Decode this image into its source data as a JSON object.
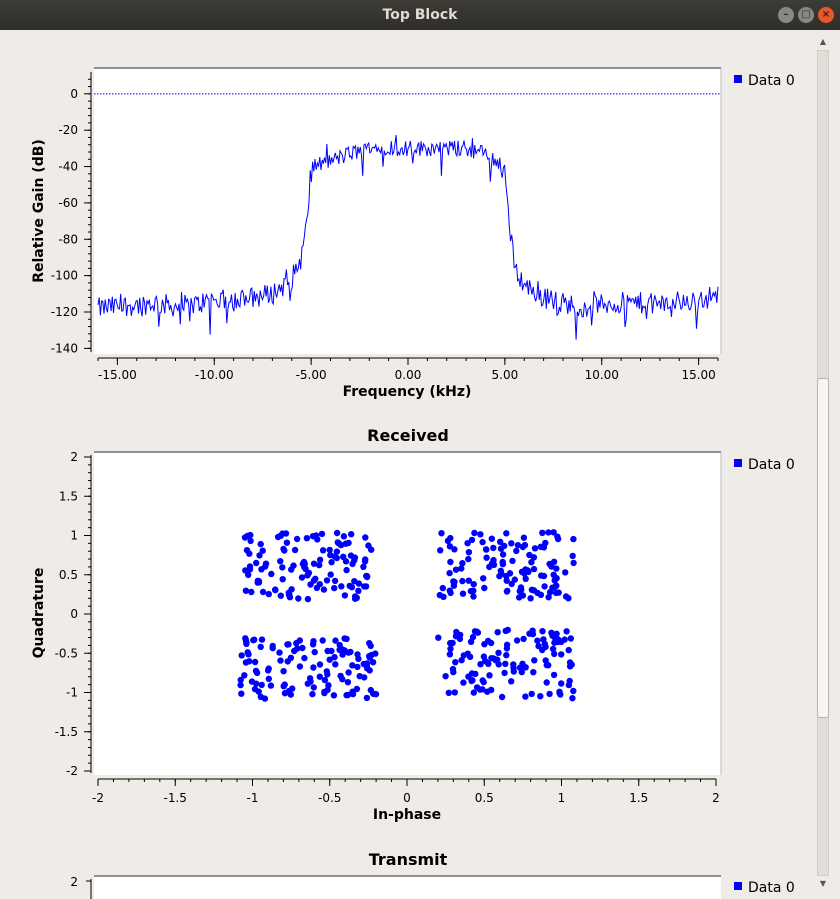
{
  "window": {
    "title": "Top Block",
    "controls": [
      "minimize-icon",
      "maximize-icon",
      "close-icon"
    ]
  },
  "colors": {
    "series": "#0000ff",
    "reference_line": "#0000ff",
    "plot_bg": "#ffffff",
    "window_bg": "#efebe7"
  },
  "chart_data": [
    {
      "type": "line",
      "title": "",
      "xlabel": "Frequency (kHz)",
      "ylabel": "Relative Gain (dB)",
      "xlim": [
        -16,
        16
      ],
      "ylim": [
        -142,
        12
      ],
      "xticks": [
        -15,
        -10,
        -5,
        0,
        5,
        10,
        15
      ],
      "xtick_labels": [
        "-15.00",
        "-10.00",
        "-5.00",
        "0.00",
        "5.00",
        "10.00",
        "15.00"
      ],
      "yticks": [
        0,
        -20,
        -40,
        -60,
        -80,
        -100,
        -120,
        -140
      ],
      "ytick_labels": [
        "0",
        "-20",
        "-40",
        "-60",
        "-80",
        "-100",
        "-120",
        "-140"
      ],
      "reference_line_y": 0,
      "legend": {
        "position": "top-right",
        "entries": [
          "Data 0"
        ]
      },
      "series": [
        {
          "name": "Data 0",
          "x": [
            -16,
            -15,
            -14,
            -13,
            -12,
            -11,
            -10,
            -9,
            -8,
            -7,
            -6,
            -5.5,
            -5.2,
            -5,
            -4,
            -3,
            -2,
            -1,
            0,
            1,
            2,
            3,
            4,
            5,
            5.2,
            5.5,
            6,
            7,
            8,
            9,
            10,
            11,
            12,
            13,
            14,
            15,
            16
          ],
          "y": [
            -118,
            -117,
            -116,
            -115,
            -117,
            -116,
            -113,
            -114,
            -112,
            -110,
            -102,
            -90,
            -70,
            -40,
            -37,
            -33,
            -30,
            -29,
            -30,
            -30,
            -30,
            -30,
            -33,
            -40,
            -70,
            -95,
            -105,
            -112,
            -115,
            -117,
            -116,
            -115,
            -115,
            -116,
            -114,
            -114,
            -110
          ]
        }
      ]
    },
    {
      "type": "scatter",
      "title": "Received",
      "xlabel": "In-phase",
      "ylabel": "Quadrature",
      "xlim": [
        -2,
        2
      ],
      "ylim": [
        -2,
        2
      ],
      "xticks": [
        -2,
        -1.5,
        -1,
        -0.5,
        0,
        0.5,
        1,
        1.5,
        2
      ],
      "xtick_labels": [
        "-2",
        "-1.5",
        "-1",
        "-0.5",
        "0",
        "0.5",
        "1",
        "1.5",
        "2"
      ],
      "yticks": [
        2,
        1.5,
        1,
        0.5,
        0,
        -0.5,
        -1,
        -1.5,
        -2
      ],
      "ytick_labels": [
        "2",
        "1.5",
        "1",
        "0.5",
        "0",
        "-0.5",
        "-1",
        "-1.5",
        "-2"
      ],
      "legend": {
        "position": "top-right",
        "entries": [
          "Data 0"
        ]
      },
      "clusters": [
        {
          "x_range": [
            -1.05,
            -0.22
          ],
          "y_range": [
            0.18,
            1.05
          ]
        },
        {
          "x_range": [
            0.2,
            1.08
          ],
          "y_range": [
            0.2,
            1.05
          ]
        },
        {
          "x_range": [
            -1.08,
            -0.2
          ],
          "y_range": [
            -1.08,
            -0.3
          ]
        },
        {
          "x_range": [
            0.2,
            1.08
          ],
          "y_range": [
            -1.08,
            -0.2
          ]
        }
      ],
      "series": [
        {
          "name": "Data 0",
          "points_per_cluster": 120
        }
      ]
    },
    {
      "type": "scatter",
      "title": "Transmit",
      "yticks": [
        2
      ],
      "ytick_labels": [
        "2"
      ],
      "legend": {
        "position": "top-right",
        "entries": [
          "Data 0"
        ]
      },
      "series": [
        {
          "name": "Data 0",
          "values": []
        }
      ]
    }
  ]
}
